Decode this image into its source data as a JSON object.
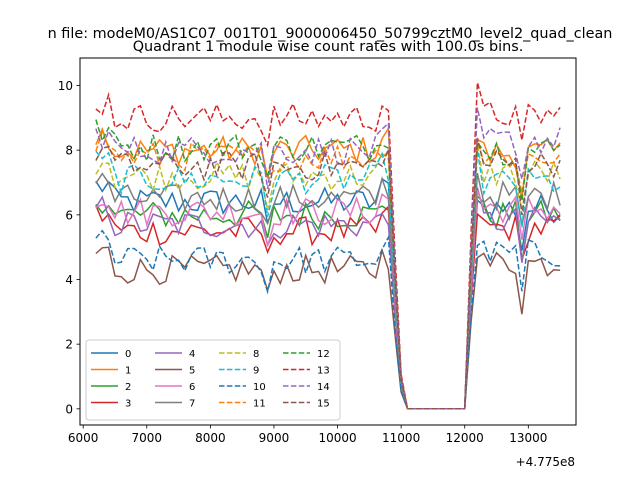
{
  "chart_data": {
    "type": "line",
    "suptitle": "n file: modeM0/AS1C07_001T01_9000006450_50799cztM0_level2_quad_clean",
    "title": "Quadrant 1 module wise count rates with 100.0s bins.",
    "xlabel": "",
    "ylabel": "",
    "x_offset_label": "+4.775e8",
    "xlim": [
      5950,
      13750
    ],
    "ylim": [
      -0.5,
      10.85
    ],
    "xticks": [
      6000,
      7000,
      8000,
      9000,
      10000,
      11000,
      12000,
      13000
    ],
    "xtick_labels": [
      "6000",
      "7000",
      "8000",
      "9000",
      "10000",
      "11000",
      "12000",
      "13000"
    ],
    "yticks": [
      0,
      2,
      4,
      6,
      8,
      10
    ],
    "ytick_labels": [
      "0",
      "2",
      "4",
      "6",
      "8",
      "10"
    ],
    "grid": false,
    "legend_placement": "lower-left",
    "legend_columns": 4,
    "gap_start": 11100,
    "gap_end": 12000,
    "series": [
      {
        "name": "0",
        "color": "#1f77b4",
        "dash": "solid",
        "level1": 6.4,
        "level2": 6.2
      },
      {
        "name": "1",
        "color": "#ff7f0e",
        "dash": "solid",
        "level1": 8.0,
        "level2": 7.9
      },
      {
        "name": "2",
        "color": "#2ca02c",
        "dash": "solid",
        "level1": 6.0,
        "level2": 6.0
      },
      {
        "name": "3",
        "color": "#d62728",
        "dash": "solid",
        "level1": 5.5,
        "level2": 5.6
      },
      {
        "name": "4",
        "color": "#9467bd",
        "dash": "solid",
        "level1": 5.7,
        "level2": 5.8
      },
      {
        "name": "5",
        "color": "#8c564b",
        "dash": "solid",
        "level1": 4.3,
        "level2": 4.5
      },
      {
        "name": "6",
        "color": "#e377c2",
        "dash": "solid",
        "level1": 6.1,
        "level2": 6.2
      },
      {
        "name": "7",
        "color": "#7f7f7f",
        "dash": "solid",
        "level1": 6.5,
        "level2": 6.6
      },
      {
        "name": "8",
        "color": "#bcbd22",
        "dash": "dashed",
        "level1": 7.2,
        "level2": 7.3
      },
      {
        "name": "9",
        "color": "#17becf",
        "dash": "dashed",
        "level1": 7.1,
        "level2": 7.0
      },
      {
        "name": "10",
        "color": "#1f77b4",
        "dash": "dashed",
        "level1": 4.6,
        "level2": 4.8
      },
      {
        "name": "11",
        "color": "#ff7f0e",
        "dash": "dashed",
        "level1": 7.8,
        "level2": 7.8
      },
      {
        "name": "12",
        "color": "#2ca02c",
        "dash": "dashed",
        "level1": 8.1,
        "level2": 8.0
      },
      {
        "name": "13",
        "color": "#d62728",
        "dash": "dashed",
        "level1": 9.0,
        "level2": 9.1
      },
      {
        "name": "14",
        "color": "#9467bd",
        "dash": "dashed",
        "level1": 8.0,
        "level2": 8.3
      },
      {
        "name": "15",
        "color": "#8c564b",
        "dash": "dashed",
        "level1": 7.5,
        "level2": 7.6
      }
    ]
  }
}
